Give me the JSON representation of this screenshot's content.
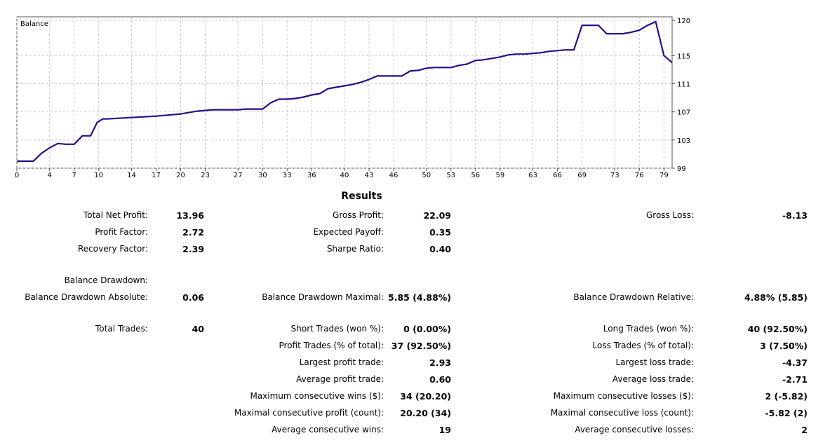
{
  "chart_data": {
    "type": "line",
    "title": "Balance",
    "x_ticks": [
      0,
      4,
      7,
      10,
      14,
      17,
      20,
      23,
      27,
      30,
      33,
      36,
      40,
      43,
      46,
      50,
      53,
      56,
      59,
      63,
      66,
      69,
      73,
      76,
      79
    ],
    "y_ticks": [
      99,
      103,
      107,
      111,
      115,
      120
    ],
    "xlim": [
      0,
      80
    ],
    "ylim": [
      99,
      120.5
    ],
    "series": [
      {
        "color": "#2a0a8c",
        "x": [
          0,
          2,
          3,
          4,
          5,
          6,
          7,
          8,
          9,
          9.8,
          10.5,
          11,
          14,
          17,
          18,
          20,
          21,
          22,
          23,
          24,
          25,
          27,
          28,
          30,
          31,
          32,
          33,
          34,
          35,
          36,
          37,
          38,
          39,
          40,
          41,
          42,
          43,
          44,
          45,
          46,
          47,
          48,
          49,
          50,
          51,
          52,
          53,
          54,
          55,
          56,
          57,
          58,
          59,
          60,
          61,
          62,
          63,
          64,
          65,
          66,
          67,
          68,
          69,
          70,
          71,
          72,
          73,
          74,
          75,
          76,
          77,
          78,
          79,
          80
        ],
        "y": [
          100.0,
          100.0,
          101.1,
          101.9,
          102.5,
          102.4,
          102.4,
          103.6,
          103.6,
          105.5,
          106.0,
          106.0,
          106.2,
          106.4,
          106.5,
          106.7,
          106.9,
          107.1,
          107.2,
          107.3,
          107.3,
          107.3,
          107.4,
          107.4,
          108.3,
          108.8,
          108.8,
          108.9,
          109.1,
          109.4,
          109.6,
          110.3,
          110.5,
          110.7,
          110.9,
          111.2,
          111.6,
          112.1,
          112.1,
          112.1,
          112.1,
          112.8,
          112.9,
          113.2,
          113.3,
          113.3,
          113.3,
          113.6,
          113.8,
          114.3,
          114.4,
          114.6,
          114.8,
          115.1,
          115.2,
          115.2,
          115.3,
          115.4,
          115.6,
          115.7,
          115.8,
          115.8,
          119.3,
          119.3,
          119.3,
          118.1,
          118.1,
          118.1,
          118.3,
          118.6,
          119.3,
          119.8,
          115.0,
          114.0
        ]
      }
    ]
  },
  "results": {
    "title": "Results",
    "rows": [
      {
        "top": 300,
        "items": [
          {
            "col": 1,
            "label": "Total Net Profit:",
            "value": "13.96"
          },
          {
            "col": 2,
            "label": "Gross Profit:",
            "value": "22.09"
          },
          {
            "col": 3,
            "label": "Gross Loss:",
            "value": "-8.13"
          }
        ]
      },
      {
        "top": 324,
        "items": [
          {
            "col": 1,
            "label": "Profit Factor:",
            "value": "2.72"
          },
          {
            "col": 2,
            "label": "Expected Payoff:",
            "value": "0.35"
          }
        ]
      },
      {
        "top": 348,
        "items": [
          {
            "col": 1,
            "label": "Recovery Factor:",
            "value": "2.39"
          },
          {
            "col": 2,
            "label": "Sharpe Ratio:",
            "value": "0.40"
          }
        ]
      },
      {
        "top": 393,
        "items": [
          {
            "col": 1,
            "label": "Balance Drawdown:",
            "value": ""
          }
        ]
      },
      {
        "top": 417,
        "items": [
          {
            "col": 1,
            "label": "Balance Drawdown Absolute:",
            "value": "0.06"
          },
          {
            "col": 2,
            "label": "Balance Drawdown Maximal:",
            "value": "5.85 (4.88%)"
          },
          {
            "col": 3,
            "label": "Balance Drawdown Relative:",
            "value": "4.88% (5.85)"
          }
        ]
      },
      {
        "top": 462,
        "items": [
          {
            "col": 1,
            "label": "Total Trades:",
            "value": "40"
          },
          {
            "col": 2,
            "label": "Short Trades (won %):",
            "value": "0 (0.00%)"
          },
          {
            "col": 3,
            "label": "Long Trades (won %):",
            "value": "40 (92.50%)"
          }
        ]
      },
      {
        "top": 486,
        "items": [
          {
            "col": 2,
            "label": "Profit Trades (% of total):",
            "value": "37 (92.50%)"
          },
          {
            "col": 3,
            "label": "Loss Trades (% of total):",
            "value": "3 (7.50%)"
          }
        ]
      },
      {
        "top": 510,
        "items": [
          {
            "col": 2,
            "label": "Largest profit trade:",
            "value": "2.93"
          },
          {
            "col": 3,
            "label": "Largest loss trade:",
            "value": "-4.37"
          }
        ]
      },
      {
        "top": 534,
        "items": [
          {
            "col": 2,
            "label": "Average profit trade:",
            "value": "0.60"
          },
          {
            "col": 3,
            "label": "Average loss trade:",
            "value": "-2.71"
          }
        ]
      },
      {
        "top": 558,
        "items": [
          {
            "col": 2,
            "label": "Maximum consecutive wins ($):",
            "value": "34 (20.20)"
          },
          {
            "col": 3,
            "label": "Maximum consecutive losses ($):",
            "value": "2 (-5.82)"
          }
        ]
      },
      {
        "top": 582,
        "items": [
          {
            "col": 2,
            "label": "Maximal consecutive profit (count):",
            "value": "20.20 (34)"
          },
          {
            "col": 3,
            "label": "Maximal consecutive loss (count):",
            "value": "-5.82 (2)"
          }
        ]
      },
      {
        "top": 606,
        "items": [
          {
            "col": 2,
            "label": "Average consecutive wins:",
            "value": "19"
          },
          {
            "col": 3,
            "label": "Average consecutive losses:",
            "value": "2"
          }
        ]
      }
    ]
  }
}
